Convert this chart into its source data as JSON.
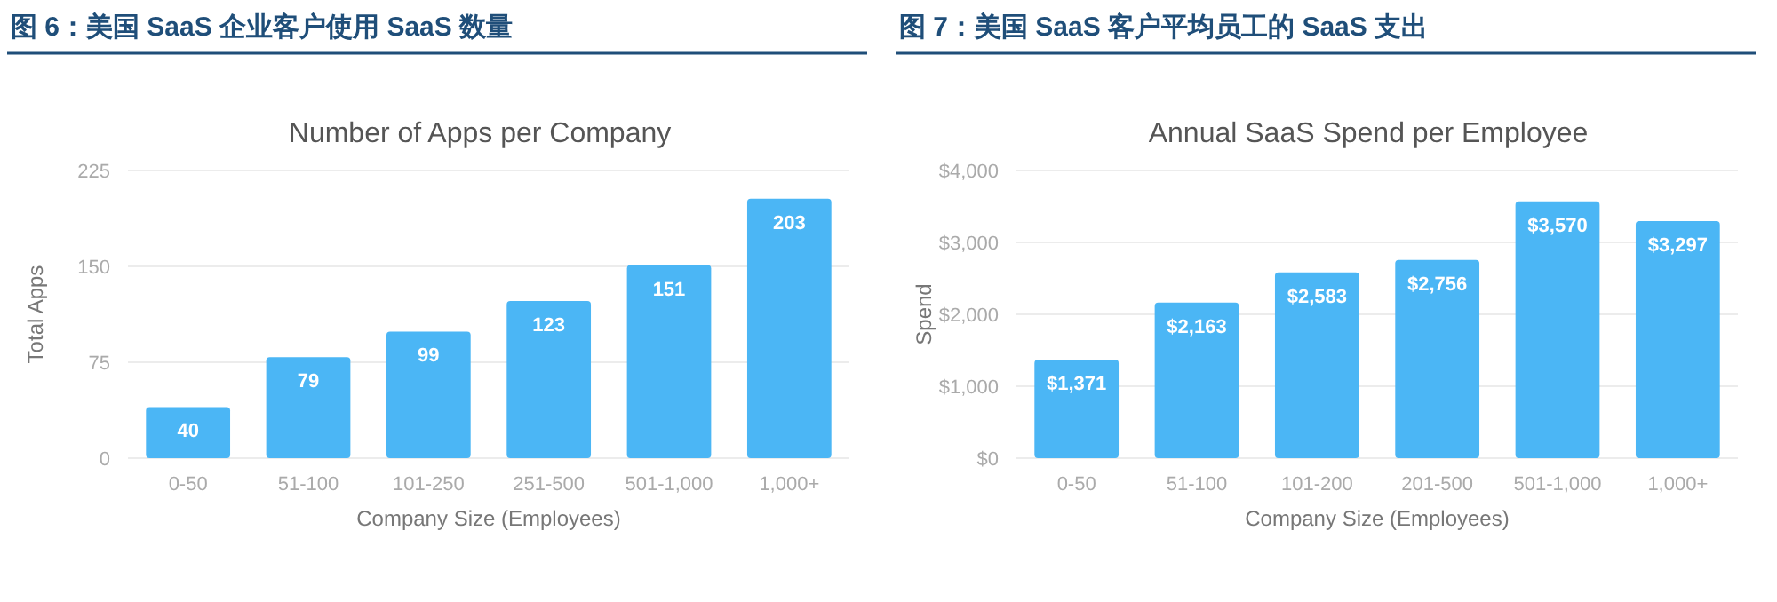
{
  "chart_data": [
    {
      "type": "bar",
      "title": "图 6：美国 SaaS 企业客户使用 SaaS 数量",
      "subtitle": "Number of Apps per Company",
      "xlabel": "Company Size (Employees)",
      "ylabel": "Total Apps",
      "categories": [
        "0-50",
        "51-100",
        "101-250",
        "251-500",
        "501-1,000",
        "1,000+"
      ],
      "values": [
        40,
        79,
        99,
        123,
        151,
        203
      ],
      "color": "#4bb6f5",
      "ylim": [
        0,
        225
      ],
      "yticks": [
        0,
        75,
        150,
        225
      ],
      "grid": "y",
      "data_labels": true
    },
    {
      "type": "bar",
      "title": "图 7：美国 SaaS 客户平均员工的 SaaS 支出",
      "subtitle": "Annual SaaS Spend per Employee",
      "xlabel": "Company Size (Employees)",
      "ylabel": "Spend",
      "categories": [
        "0-50",
        "51-100",
        "101-200",
        "201-500",
        "501-1,000",
        "1,000+"
      ],
      "values": [
        1371,
        2163,
        2583,
        2756,
        3570,
        3297
      ],
      "value_labels": [
        "$1,371",
        "$2,163",
        "$2,583",
        "$2,756",
        "$3,570",
        "$3,297"
      ],
      "color": "#4bb6f5",
      "ylim": [
        0,
        4000
      ],
      "yticks": [
        {
          "value": 0,
          "label": "$0"
        },
        {
          "value": 1000,
          "label": "$1,000"
        },
        {
          "value": 2000,
          "label": "$2,000"
        },
        {
          "value": 3000,
          "label": "$3,000"
        },
        {
          "value": 4000,
          "label": "$4,000"
        }
      ],
      "grid": "y"
    }
  ]
}
